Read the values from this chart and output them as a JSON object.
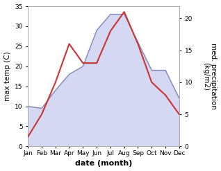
{
  "months": [
    "Jan",
    "Feb",
    "Mar",
    "Apr",
    "May",
    "Jun",
    "Jul",
    "Aug",
    "Sep",
    "Oct",
    "Nov",
    "Dec"
  ],
  "month_indices": [
    1,
    2,
    3,
    4,
    5,
    6,
    7,
    8,
    9,
    10,
    11,
    12
  ],
  "temp_max": [
    10,
    9.5,
    14,
    18,
    20,
    29,
    33,
    33,
    26,
    19,
    19,
    12
  ],
  "precip": [
    1.5,
    5,
    10,
    16,
    13,
    13,
    18,
    21,
    16,
    10,
    8,
    5
  ],
  "temp_line_color": "#8888bb",
  "precip_color": "#cc3333",
  "temp_fill_color": "#c8ccee",
  "temp_fill_alpha": 0.75,
  "left_ylim": [
    0,
    35
  ],
  "right_ylim": [
    0,
    21.875
  ],
  "right_yticks": [
    0,
    5,
    10,
    15,
    20
  ],
  "left_yticks": [
    0,
    5,
    10,
    15,
    20,
    25,
    30,
    35
  ],
  "xlabel": "date (month)",
  "ylabel_left": "max temp (C)",
  "ylabel_right": "med. precipitation\n(kg/m2)",
  "background_color": "#ffffff",
  "spine_color": "#aaaaaa",
  "tick_labelsize": 6.5,
  "ylabel_fontsize": 7.5,
  "xlabel_fontsize": 8
}
